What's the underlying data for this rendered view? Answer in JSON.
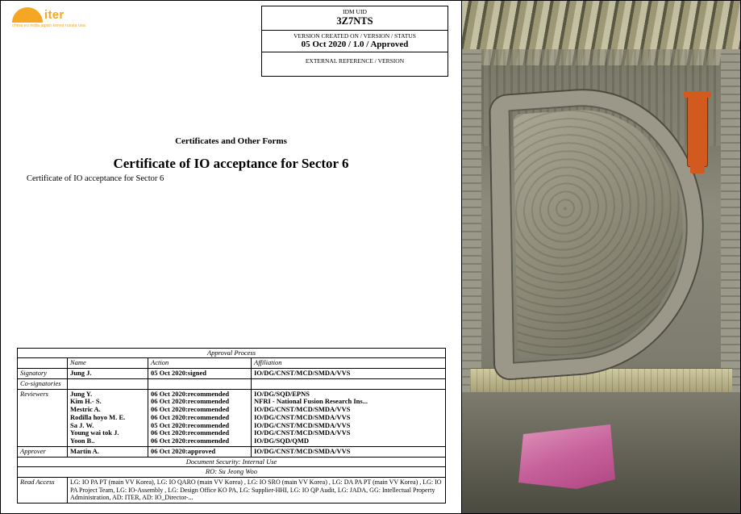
{
  "logo": {
    "word": "iter",
    "tagline": "china eu india japan korea russia usa"
  },
  "header": {
    "idm_label": "IDM UID",
    "idm_value": "3Z7NTS",
    "ver_label": "VERSION CREATED ON / VERSION / STATUS",
    "ver_value": "05 Oct 2020 / 1.0 / Approved",
    "ext_label": "EXTERNAL REFERENCE / VERSION"
  },
  "doc": {
    "section": "Certificates and Other Forms",
    "title": "Certificate of IO acceptance for Sector 6",
    "subtitle": "Certificate of IO acceptance for Sector 6"
  },
  "approval": {
    "caption": "Approval Process",
    "cols": {
      "name": "Name",
      "action": "Action",
      "affiliation": "Affiliation"
    },
    "signatory_label": "Signatory",
    "signatory": {
      "name": "Jung J.",
      "action": "05 Oct 2020:signed",
      "affil": "IO/DG/CNST/MCD/SMDA/VVS"
    },
    "cosig_label": "Co-signatories",
    "reviewers_label": "Reviewers",
    "reviewers": [
      {
        "name": "Jung Y.",
        "action": "06 Oct 2020:recommended",
        "affil": "IO/DG/SQD/EPNS"
      },
      {
        "name": "Kim H.- S.",
        "action": "06 Oct 2020:recommended",
        "affil": "NFRI - National Fusion Research Ins..."
      },
      {
        "name": "Mestric A.",
        "action": "06 Oct 2020:recommended",
        "affil": "IO/DG/CNST/MCD/SMDA/VVS"
      },
      {
        "name": "Rodilla hoyo M. E.",
        "action": "06 Oct 2020:recommended",
        "affil": "IO/DG/CNST/MCD/SMDA/VVS"
      },
      {
        "name": "Sa J. W.",
        "action": "05 Oct 2020:recommended",
        "affil": "IO/DG/CNST/MCD/SMDA/VVS"
      },
      {
        "name": "Young wai tok J.",
        "action": "06 Oct 2020:recommended",
        "affil": "IO/DG/CNST/MCD/SMDA/VVS"
      },
      {
        "name": "Yoon B..",
        "action": "06 Oct 2020:recommended",
        "affil": "IO/DG/SQD/QMD"
      }
    ],
    "approver_label": "Approver",
    "approver": {
      "name": "Martin A.",
      "action": "06 Oct 2020:approved",
      "affil": "IO/DG/CNST/MCD/SMDA/VVS"
    },
    "security_line": "Document Security: Internal Use",
    "ro_line": "RO: Su Jeong Woo",
    "read_access_label": "Read Access",
    "read_access": "LG: IO PA PT (main VV Korea), LG: IO QARO (main VV Korea) , LG: IO SRO (main VV Korea) , LG: DA PA PT (main VV Korea) , LG: IO PA Project Team, LG: IO-Assembly , LG: Design Office KO PA, LG: Supplier-HHI, LG: IO QP Audit, LG: JADA, GG: Intellectual Property Administration, AD: ITER, AD: IO_Director-..."
  }
}
